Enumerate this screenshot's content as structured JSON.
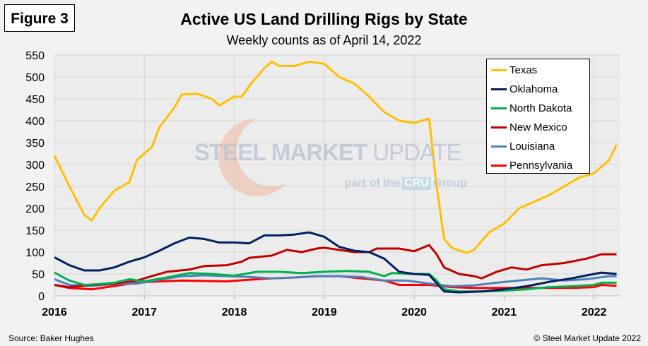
{
  "figure_label": "Figure 3",
  "source": "Source: Baker Hughes",
  "copyright": "© Steel Market Update 2022",
  "watermark": {
    "brand": "STEEL MARKET",
    "brand_light": "UPDATE",
    "tagline_pre": "part of the",
    "tagline_logo": "CRU",
    "tagline_post": "Group"
  },
  "chart_data": {
    "type": "line",
    "title": "Active US Land Drilling Rigs by State",
    "subtitle": "Weekly counts as of April 14, 2022",
    "xlabel": "",
    "ylabel": "",
    "xlim": [
      "2016-01",
      "2022-04-14"
    ],
    "ylim": [
      0,
      550
    ],
    "yticks": [
      0,
      50,
      100,
      150,
      200,
      250,
      300,
      350,
      400,
      450,
      500,
      550
    ],
    "xticks": [
      "2016",
      "2017",
      "2018",
      "2019",
      "2020",
      "2021",
      "2022"
    ],
    "grid": true,
    "legend": "top-right",
    "series": [
      {
        "name": "Texas",
        "color": "#ffc000",
        "points": [
          [
            "2016-01",
            320
          ],
          [
            "2016-03",
            250
          ],
          [
            "2016-05",
            185
          ],
          [
            "2016-06",
            172
          ],
          [
            "2016-07",
            200
          ],
          [
            "2016-09",
            240
          ],
          [
            "2016-11",
            260
          ],
          [
            "2016-12",
            310
          ],
          [
            "2017-02",
            340
          ],
          [
            "2017-03",
            385
          ],
          [
            "2017-05",
            430
          ],
          [
            "2017-06",
            460
          ],
          [
            "2017-08",
            462
          ],
          [
            "2017-10",
            450
          ],
          [
            "2017-11",
            435
          ],
          [
            "2018-01",
            455
          ],
          [
            "2018-02",
            455
          ],
          [
            "2018-03",
            480
          ],
          [
            "2018-04",
            500
          ],
          [
            "2018-05",
            520
          ],
          [
            "2018-06",
            535
          ],
          [
            "2018-07",
            525
          ],
          [
            "2018-09",
            525
          ],
          [
            "2018-11",
            535
          ],
          [
            "2019-01",
            530
          ],
          [
            "2019-03",
            500
          ],
          [
            "2019-05",
            485
          ],
          [
            "2019-07",
            455
          ],
          [
            "2019-09",
            420
          ],
          [
            "2019-11",
            400
          ],
          [
            "2020-01",
            395
          ],
          [
            "2020-03",
            405
          ],
          [
            "2020-04",
            250
          ],
          [
            "2020-05",
            130
          ],
          [
            "2020-06",
            110
          ],
          [
            "2020-08",
            98
          ],
          [
            "2020-09",
            105
          ],
          [
            "2020-11",
            145
          ],
          [
            "2021-01",
            165
          ],
          [
            "2021-03",
            200
          ],
          [
            "2021-05",
            215
          ],
          [
            "2021-07",
            230
          ],
          [
            "2021-09",
            250
          ],
          [
            "2021-11",
            270
          ],
          [
            "2022-01",
            280
          ],
          [
            "2022-03",
            310
          ],
          [
            "2022-04",
            345
          ]
        ]
      },
      {
        "name": "Oklahoma",
        "color": "#002060",
        "points": [
          [
            "2016-01",
            88
          ],
          [
            "2016-03",
            70
          ],
          [
            "2016-05",
            58
          ],
          [
            "2016-07",
            58
          ],
          [
            "2016-09",
            65
          ],
          [
            "2016-11",
            78
          ],
          [
            "2017-01",
            88
          ],
          [
            "2017-03",
            103
          ],
          [
            "2017-05",
            120
          ],
          [
            "2017-07",
            133
          ],
          [
            "2017-09",
            130
          ],
          [
            "2017-11",
            122
          ],
          [
            "2018-01",
            122
          ],
          [
            "2018-03",
            120
          ],
          [
            "2018-05",
            138
          ],
          [
            "2018-07",
            138
          ],
          [
            "2018-09",
            140
          ],
          [
            "2018-11",
            145
          ],
          [
            "2019-01",
            135
          ],
          [
            "2019-03",
            112
          ],
          [
            "2019-05",
            103
          ],
          [
            "2019-07",
            100
          ],
          [
            "2019-09",
            85
          ],
          [
            "2019-11",
            55
          ],
          [
            "2020-01",
            50
          ],
          [
            "2020-03",
            48
          ],
          [
            "2020-05",
            10
          ],
          [
            "2020-07",
            8
          ],
          [
            "2020-10",
            10
          ],
          [
            "2021-01",
            15
          ],
          [
            "2021-04",
            22
          ],
          [
            "2021-07",
            32
          ],
          [
            "2021-10",
            40
          ],
          [
            "2022-01",
            50
          ],
          [
            "2022-02",
            53
          ],
          [
            "2022-04",
            50
          ]
        ]
      },
      {
        "name": "North Dakota",
        "color": "#00b050",
        "points": [
          [
            "2016-01",
            53
          ],
          [
            "2016-03",
            35
          ],
          [
            "2016-05",
            25
          ],
          [
            "2016-07",
            27
          ],
          [
            "2016-09",
            30
          ],
          [
            "2016-11",
            38
          ],
          [
            "2017-01",
            33
          ],
          [
            "2017-04",
            42
          ],
          [
            "2017-07",
            52
          ],
          [
            "2017-10",
            50
          ],
          [
            "2018-01",
            46
          ],
          [
            "2018-04",
            55
          ],
          [
            "2018-07",
            55
          ],
          [
            "2018-10",
            52
          ],
          [
            "2019-01",
            55
          ],
          [
            "2019-04",
            57
          ],
          [
            "2019-07",
            55
          ],
          [
            "2019-09",
            45
          ],
          [
            "2019-10",
            52
          ],
          [
            "2020-01",
            50
          ],
          [
            "2020-03",
            50
          ],
          [
            "2020-04",
            35
          ],
          [
            "2020-05",
            15
          ],
          [
            "2020-07",
            10
          ],
          [
            "2020-10",
            10
          ],
          [
            "2021-01",
            12
          ],
          [
            "2021-04",
            15
          ],
          [
            "2021-07",
            20
          ],
          [
            "2021-10",
            22
          ],
          [
            "2022-01",
            25
          ],
          [
            "2022-02",
            30
          ],
          [
            "2022-04",
            30
          ]
        ]
      },
      {
        "name": "New Mexico",
        "color": "#c00000",
        "points": [
          [
            "2016-01",
            25
          ],
          [
            "2016-03",
            20
          ],
          [
            "2016-06",
            25
          ],
          [
            "2016-09",
            28
          ],
          [
            "2016-12",
            35
          ],
          [
            "2017-02",
            45
          ],
          [
            "2017-04",
            55
          ],
          [
            "2017-07",
            60
          ],
          [
            "2017-09",
            68
          ],
          [
            "2017-12",
            70
          ],
          [
            "2018-02",
            78
          ],
          [
            "2018-03",
            87
          ],
          [
            "2018-06",
            92
          ],
          [
            "2018-08",
            105
          ],
          [
            "2018-10",
            100
          ],
          [
            "2018-12",
            108
          ],
          [
            "2019-01",
            110
          ],
          [
            "2019-03",
            105
          ],
          [
            "2019-05",
            100
          ],
          [
            "2019-07",
            100
          ],
          [
            "2019-08",
            108
          ],
          [
            "2019-11",
            108
          ],
          [
            "2020-01",
            102
          ],
          [
            "2020-03",
            116
          ],
          [
            "2020-04",
            95
          ],
          [
            "2020-05",
            65
          ],
          [
            "2020-07",
            50
          ],
          [
            "2020-09",
            45
          ],
          [
            "2020-10",
            40
          ],
          [
            "2020-12",
            55
          ],
          [
            "2021-02",
            65
          ],
          [
            "2021-04",
            60
          ],
          [
            "2021-06",
            70
          ],
          [
            "2021-09",
            75
          ],
          [
            "2021-12",
            85
          ],
          [
            "2022-02",
            95
          ],
          [
            "2022-04",
            95
          ]
        ]
      },
      {
        "name": "Louisiana",
        "color": "#4f81bd",
        "points": [
          [
            "2016-01",
            38
          ],
          [
            "2016-03",
            25
          ],
          [
            "2016-06",
            23
          ],
          [
            "2016-09",
            27
          ],
          [
            "2016-12",
            28
          ],
          [
            "2017-03",
            37
          ],
          [
            "2017-06",
            45
          ],
          [
            "2017-09",
            47
          ],
          [
            "2017-12",
            45
          ],
          [
            "2018-03",
            43
          ],
          [
            "2018-06",
            40
          ],
          [
            "2018-09",
            42
          ],
          [
            "2018-12",
            45
          ],
          [
            "2019-03",
            45
          ],
          [
            "2019-06",
            43
          ],
          [
            "2019-09",
            35
          ],
          [
            "2019-12",
            35
          ],
          [
            "2020-03",
            28
          ],
          [
            "2020-06",
            22
          ],
          [
            "2020-09",
            24
          ],
          [
            "2020-12",
            30
          ],
          [
            "2021-03",
            35
          ],
          [
            "2021-06",
            40
          ],
          [
            "2021-09",
            35
          ],
          [
            "2021-12",
            38
          ],
          [
            "2022-03",
            45
          ],
          [
            "2022-04",
            45
          ]
        ]
      },
      {
        "name": "Pennsylvania",
        "color": "#ff0000",
        "points": [
          [
            "2016-01",
            25
          ],
          [
            "2016-03",
            18
          ],
          [
            "2016-06",
            15
          ],
          [
            "2016-08",
            20
          ],
          [
            "2016-10",
            25
          ],
          [
            "2016-12",
            30
          ],
          [
            "2017-03",
            33
          ],
          [
            "2017-06",
            35
          ],
          [
            "2017-09",
            34
          ],
          [
            "2017-12",
            33
          ],
          [
            "2018-03",
            37
          ],
          [
            "2018-06",
            40
          ],
          [
            "2018-09",
            42
          ],
          [
            "2018-12",
            45
          ],
          [
            "2019-03",
            45
          ],
          [
            "2019-06",
            40
          ],
          [
            "2019-09",
            35
          ],
          [
            "2019-11",
            25
          ],
          [
            "2020-03",
            25
          ],
          [
            "2020-06",
            20
          ],
          [
            "2020-09",
            18
          ],
          [
            "2021-01",
            18
          ],
          [
            "2021-06",
            18
          ],
          [
            "2021-10",
            18
          ],
          [
            "2022-01",
            20
          ],
          [
            "2022-02",
            25
          ],
          [
            "2022-04",
            23
          ]
        ]
      }
    ]
  }
}
